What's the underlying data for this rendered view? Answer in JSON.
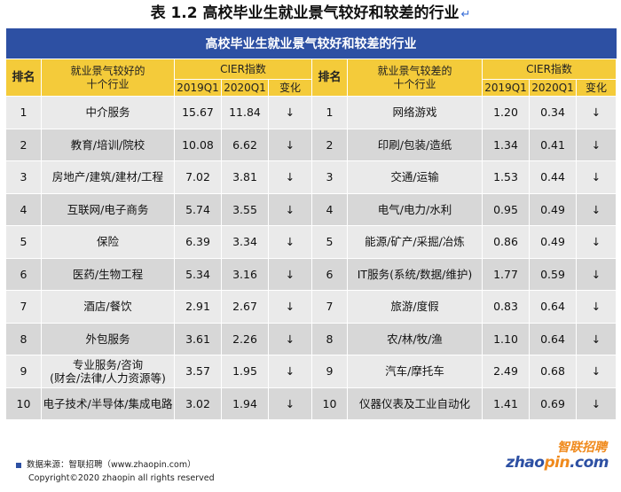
{
  "caption": "表 1.2  高校毕业生就业景气较好和较差的行业",
  "caption_mark": "↵",
  "table": {
    "title": "高校毕业生就业景气较好和较差的行业",
    "rank_header": "排名",
    "good_header_line1": "就业景气较好的",
    "good_header_line2": "十个行业",
    "bad_header_line1": "就业景气较差的",
    "bad_header_line2": "十个行业",
    "cier_header": "CIER指数",
    "col_2019": "2019Q1",
    "col_2020": "2020Q1",
    "col_change": "变化",
    "rows": [
      {
        "rank": "1",
        "good": "中介服务",
        "g19": "15.67",
        "g20": "11.84",
        "gch": "↓",
        "brank": "1",
        "bad": "网络游戏",
        "b19": "1.20",
        "b20": "0.34",
        "bch": "↓"
      },
      {
        "rank": "2",
        "good": "教育/培训/院校",
        "g19": "10.08",
        "g20": "6.62",
        "gch": "↓",
        "brank": "2",
        "bad": "印刷/包装/造纸",
        "b19": "1.34",
        "b20": "0.41",
        "bch": "↓"
      },
      {
        "rank": "3",
        "good": "房地产/建筑/建材/工程",
        "g19": "7.02",
        "g20": "3.81",
        "gch": "↓",
        "brank": "3",
        "bad": "交通/运输",
        "b19": "1.53",
        "b20": "0.44",
        "bch": "↓"
      },
      {
        "rank": "4",
        "good": "互联网/电子商务",
        "g19": "5.74",
        "g20": "3.55",
        "gch": "↓",
        "brank": "4",
        "bad": "电气/电力/水利",
        "b19": "0.95",
        "b20": "0.49",
        "bch": "↓"
      },
      {
        "rank": "5",
        "good": "保险",
        "g19": "6.39",
        "g20": "3.34",
        "gch": "↓",
        "brank": "5",
        "bad": "能源/矿产/采掘/冶炼",
        "b19": "0.86",
        "b20": "0.49",
        "bch": "↓"
      },
      {
        "rank": "6",
        "good": "医药/生物工程",
        "g19": "5.34",
        "g20": "3.16",
        "gch": "↓",
        "brank": "6",
        "bad": "IT服务(系统/数据/维护)",
        "b19": "1.77",
        "b20": "0.59",
        "bch": "↓"
      },
      {
        "rank": "7",
        "good": "酒店/餐饮",
        "g19": "2.91",
        "g20": "2.67",
        "gch": "↓",
        "brank": "7",
        "bad": "旅游/度假",
        "b19": "0.83",
        "b20": "0.64",
        "bch": "↓"
      },
      {
        "rank": "8",
        "good": "外包服务",
        "g19": "3.61",
        "g20": "2.26",
        "gch": "↓",
        "brank": "8",
        "bad": "农/林/牧/渔",
        "b19": "1.10",
        "b20": "0.64",
        "bch": "↓"
      },
      {
        "rank": "9",
        "good": "专业服务/咨询",
        "good2": "(财会/法律/人力资源等)",
        "g19": "3.57",
        "g20": "1.95",
        "gch": "↓",
        "brank": "9",
        "bad": "汽车/摩托车",
        "b19": "2.49",
        "b20": "0.68",
        "bch": "↓"
      },
      {
        "rank": "10",
        "good": "电子技术/半导体/集成电路",
        "g19": "3.02",
        "g20": "1.94",
        "gch": "↓",
        "brank": "10",
        "bad": "仪器仪表及工业自动化",
        "b19": "1.41",
        "b20": "0.69",
        "bch": "↓"
      }
    ]
  },
  "footer": {
    "source": "数据来源：智联招聘（www.zhaopin.com）",
    "copyright": "Copyright©2020 zhaopin all rights reserved"
  },
  "logo": {
    "cn": "智联招聘",
    "en_left": "zhao",
    "en_dot": "pin",
    "en_right": ".com"
  }
}
